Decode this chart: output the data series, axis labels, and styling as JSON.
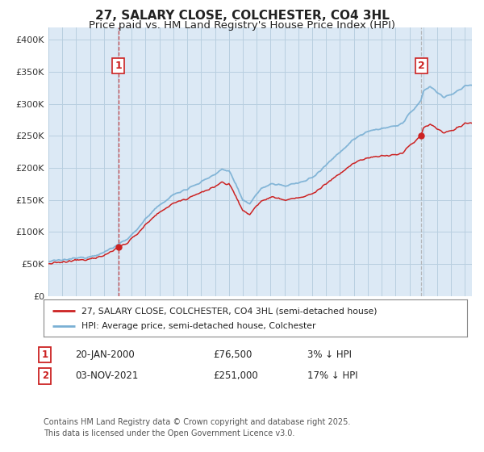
{
  "title": "27, SALARY CLOSE, COLCHESTER, CO4 3HL",
  "subtitle": "Price paid vs. HM Land Registry's House Price Index (HPI)",
  "ylabel_ticks": [
    "£0",
    "£50K",
    "£100K",
    "£150K",
    "£200K",
    "£250K",
    "£300K",
    "£350K",
    "£400K"
  ],
  "ytick_values": [
    0,
    50000,
    100000,
    150000,
    200000,
    250000,
    300000,
    350000,
    400000
  ],
  "ylim": [
    0,
    420000
  ],
  "xlim_start": 1995.0,
  "xlim_end": 2025.5,
  "sale1_x": 2000.05,
  "sale1_y": 76500,
  "sale2_x": 2021.84,
  "sale2_y": 251000,
  "annotation1": {
    "label": "1",
    "date": "20-JAN-2000",
    "price": "£76,500",
    "pct": "3% ↓ HPI"
  },
  "annotation2": {
    "label": "2",
    "date": "03-NOV-2021",
    "price": "£251,000",
    "pct": "17% ↓ HPI"
  },
  "legend_line1": "27, SALARY CLOSE, COLCHESTER, CO4 3HL (semi-detached house)",
  "legend_line2": "HPI: Average price, semi-detached house, Colchester",
  "footer": "Contains HM Land Registry data © Crown copyright and database right 2025.\nThis data is licensed under the Open Government Licence v3.0.",
  "line_color_red": "#cc2222",
  "line_color_blue": "#7ab0d4",
  "plot_bg_color": "#dce9f5",
  "background_color": "#ffffff",
  "grid_color": "#b8cfe0",
  "title_fontsize": 11,
  "subtitle_fontsize": 9.5
}
